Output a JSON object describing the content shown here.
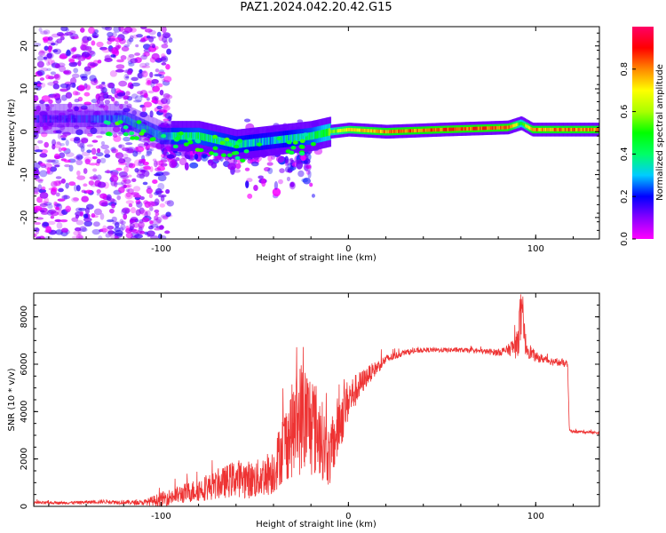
{
  "title": "PAZ1.2024.042.20.42.G15",
  "chart_data": [
    {
      "type": "heatmap",
      "xlabel": "Height of straight line (km)",
      "ylabel": "Frequency (Hz)",
      "xlim": [
        -168,
        134
      ],
      "ylim": [
        -25,
        24.5
      ],
      "xticks": [
        -100,
        0,
        100
      ],
      "yticks": [
        -20,
        -10,
        0,
        10,
        20
      ],
      "colorbar": {
        "label": "Normalized spectral amplitude",
        "range": [
          0,
          1
        ],
        "ticks": [
          "0.0",
          "0.2",
          "0.4",
          "0.6",
          "0.8"
        ],
        "ticks_values": [
          0,
          0.2,
          0.4,
          0.6,
          0.8
        ],
        "colormap": [
          "#ff00ff",
          "#8800ff",
          "#0000ff",
          "#00ccff",
          "#00ff66",
          "#00ff00",
          "#aaff00",
          "#ffff00",
          "#ff8800",
          "#ff0000",
          "#ff0066"
        ]
      },
      "ridge": [
        {
          "h": -168,
          "f": 3,
          "amp": 0.15
        },
        {
          "h": -140,
          "f": 3,
          "amp": 0.2
        },
        {
          "h": -120,
          "f": 3,
          "amp": 0.3
        },
        {
          "h": -100,
          "f": -1,
          "amp": 0.35
        },
        {
          "h": -80,
          "f": -1,
          "amp": 0.4
        },
        {
          "h": -60,
          "f": -3,
          "amp": 0.35
        },
        {
          "h": -40,
          "f": -2,
          "amp": 0.3
        },
        {
          "h": -20,
          "f": -1,
          "amp": 0.4
        },
        {
          "h": -10,
          "f": 0,
          "amp": 0.55
        },
        {
          "h": 0,
          "f": 0.5,
          "amp": 0.7
        },
        {
          "h": 20,
          "f": 0,
          "amp": 0.8
        },
        {
          "h": 50,
          "f": 0.5,
          "amp": 0.85
        },
        {
          "h": 85,
          "f": 1,
          "amp": 0.85
        },
        {
          "h": 92,
          "f": 2,
          "amp": 0.5
        },
        {
          "h": 98,
          "f": 0.5,
          "amp": 0.8
        },
        {
          "h": 134,
          "f": 0.5,
          "amp": 0.8
        }
      ]
    },
    {
      "type": "line",
      "xlabel": "Height of straight line (km)",
      "ylabel": "SNR (10 * v/v)",
      "xlim": [
        -168,
        134
      ],
      "ylim": [
        0,
        9000
      ],
      "xticks": [
        -100,
        0,
        100
      ],
      "yticks": [
        0,
        2000,
        4000,
        6000,
        8000
      ],
      "color": "#ee3333",
      "series": [
        {
          "x": [
            -168,
            -150,
            -130,
            -110,
            -100,
            -90,
            -80,
            -70,
            -60,
            -50,
            -40,
            -35,
            -30,
            -25,
            -20,
            -15,
            -10,
            -5,
            0,
            10,
            20,
            30,
            40,
            50,
            60,
            70,
            80,
            85,
            90,
            92,
            95,
            100,
            110,
            117,
            118,
            120,
            125,
            134
          ],
          "y": [
            150,
            150,
            200,
            150,
            300,
            500,
            700,
            900,
            1200,
            1100,
            1500,
            2500,
            3200,
            3800,
            3500,
            3000,
            2000,
            3500,
            4500,
            5500,
            6200,
            6500,
            6600,
            6600,
            6600,
            6550,
            6500,
            6600,
            6800,
            8000,
            6700,
            6300,
            6100,
            6000,
            3200,
            3150,
            3150,
            3100
          ],
          "noise": [
            60,
            60,
            80,
            100,
            300,
            400,
            500,
            600,
            800,
            800,
            1000,
            1500,
            2000,
            2500,
            2300,
            1800,
            1200,
            1400,
            900,
            400,
            200,
            120,
            100,
            100,
            100,
            100,
            150,
            200,
            600,
            1200,
            400,
            200,
            150,
            150,
            60,
            60,
            60,
            60
          ]
        }
      ]
    }
  ]
}
